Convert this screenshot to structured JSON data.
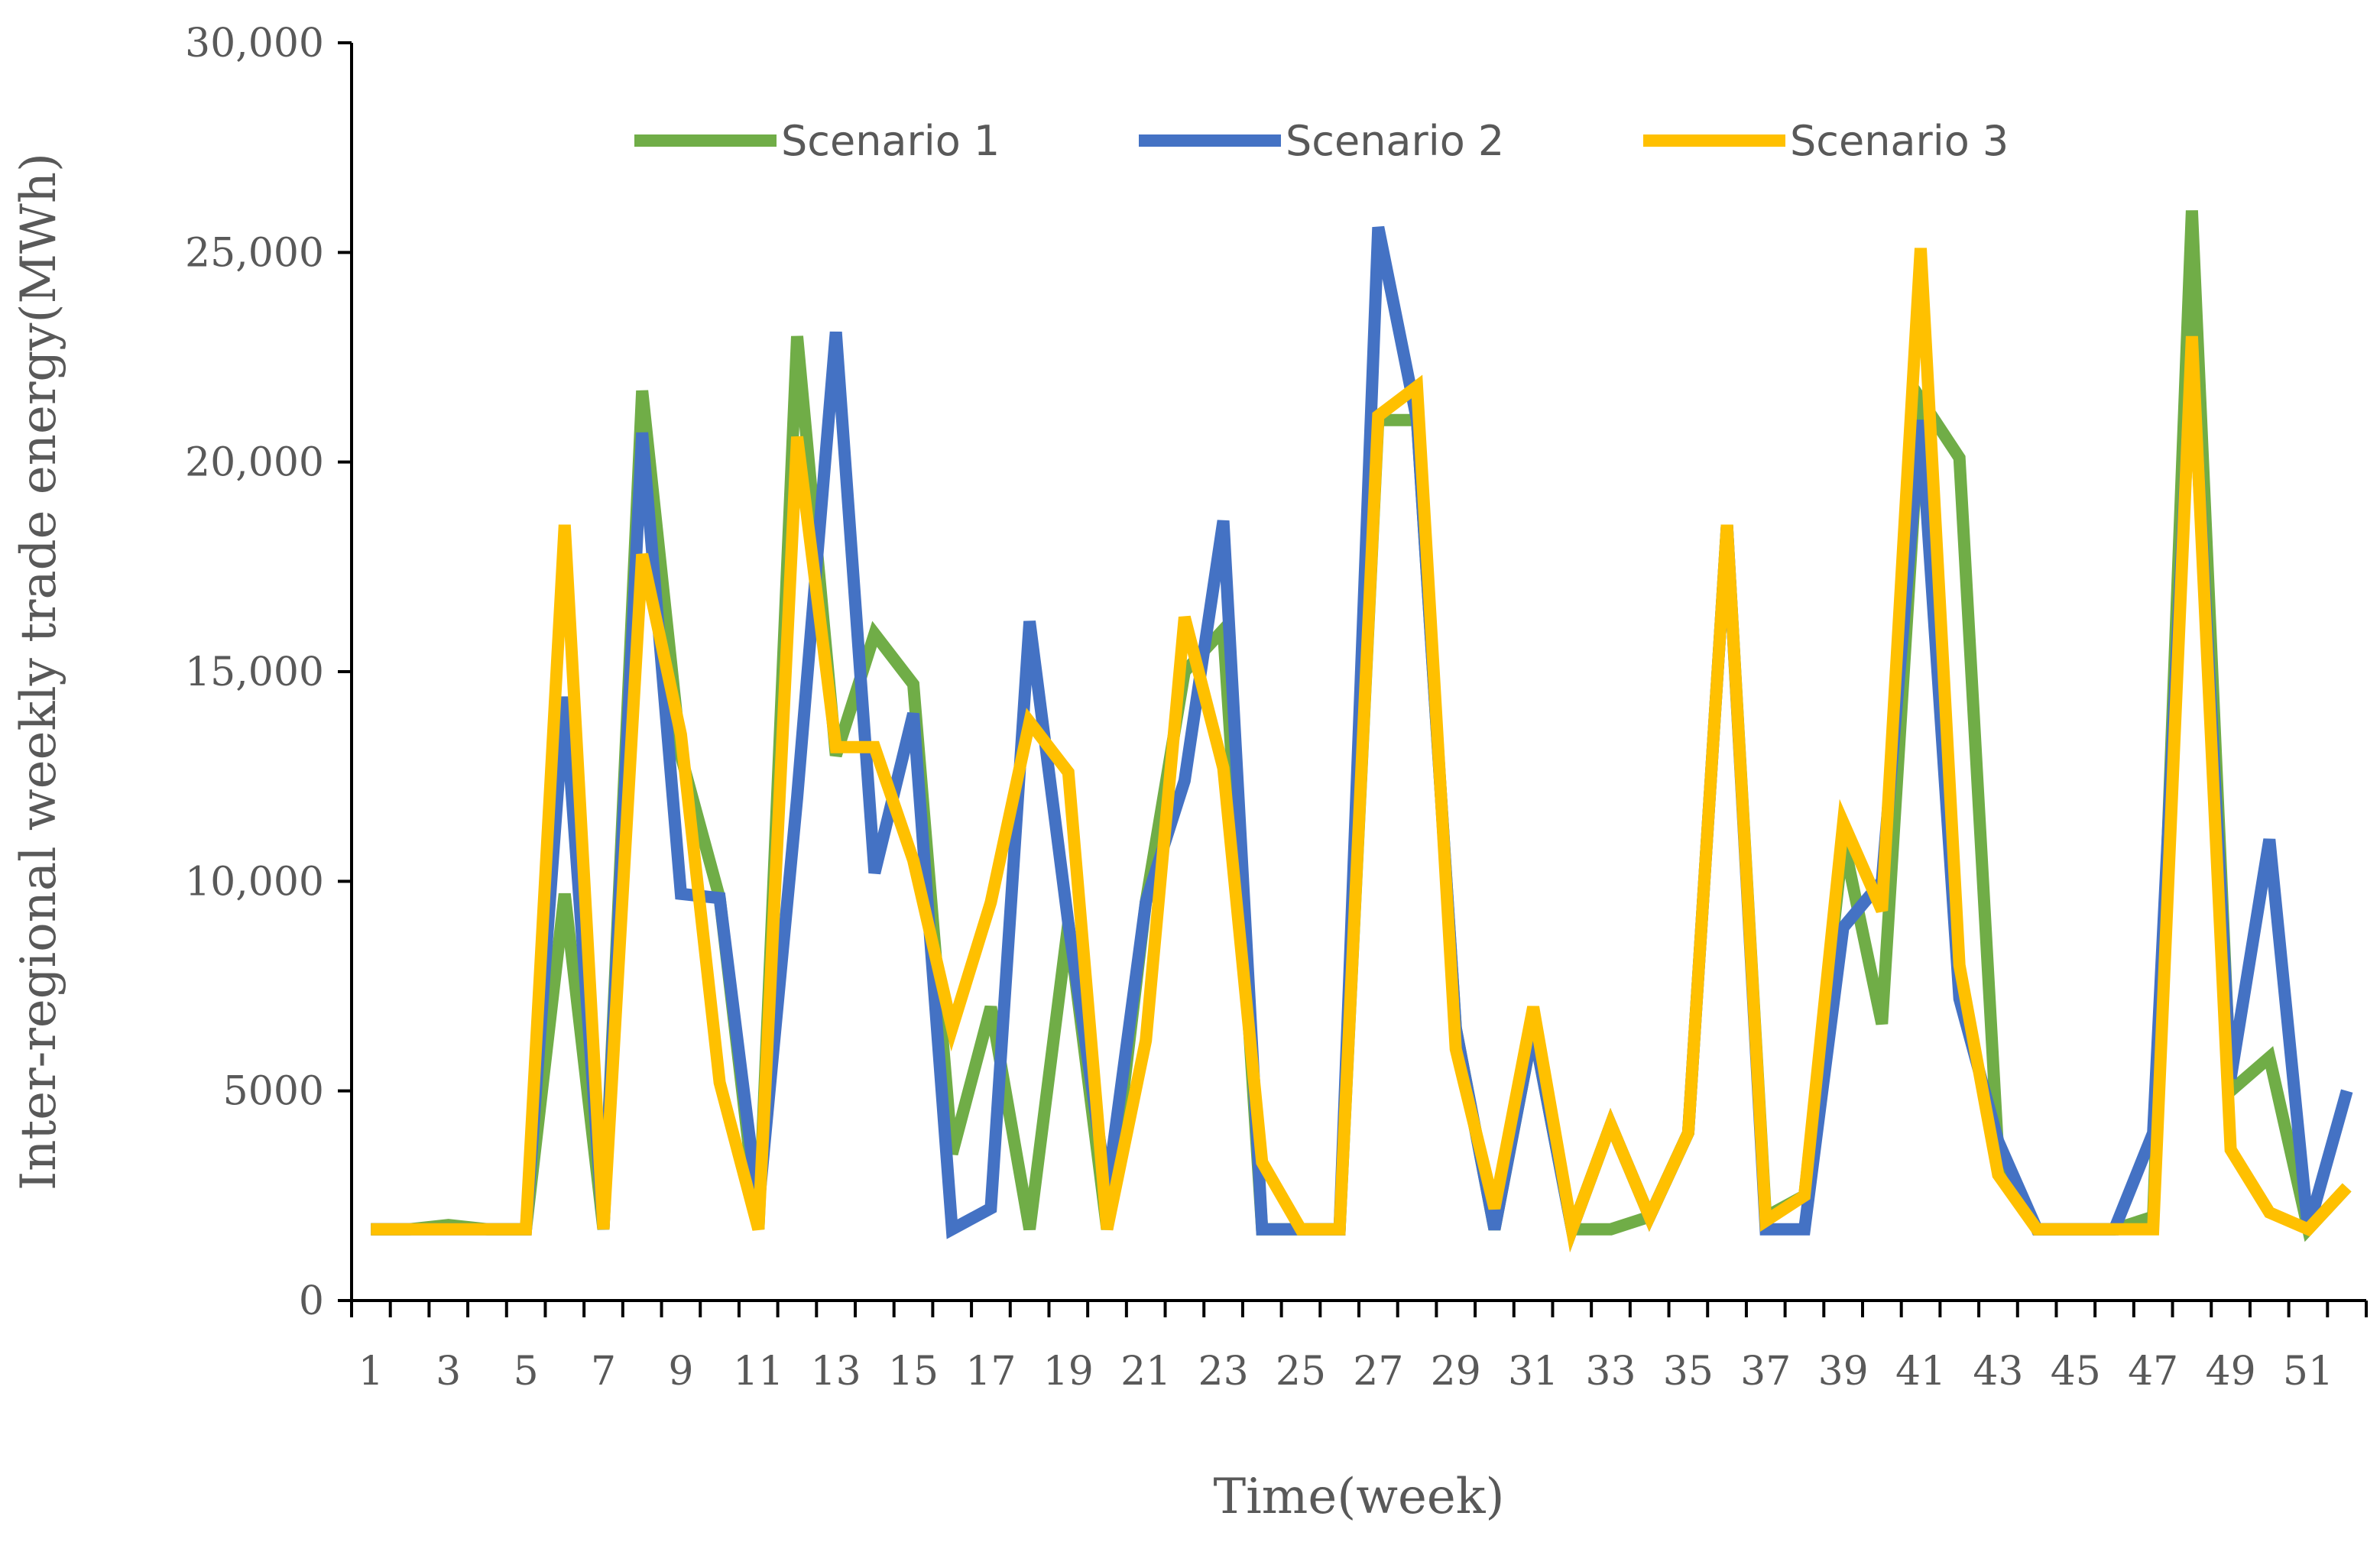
{
  "chart_data": {
    "type": "line",
    "title": "",
    "xlabel": "Time(week)",
    "ylabel": "Inter-regional weekly trade energy(MWh)",
    "x": [
      1,
      2,
      3,
      4,
      5,
      6,
      7,
      8,
      9,
      10,
      11,
      12,
      13,
      14,
      15,
      16,
      17,
      18,
      19,
      20,
      21,
      22,
      23,
      24,
      25,
      26,
      27,
      28,
      29,
      30,
      31,
      32,
      33,
      34,
      35,
      36,
      37,
      38,
      39,
      40,
      41,
      42,
      43,
      44,
      45,
      46,
      47,
      48,
      49,
      50,
      51,
      52
    ],
    "x_tick_labels": [
      "1",
      "3",
      "5",
      "7",
      "9",
      "11",
      "13",
      "15",
      "17",
      "19",
      "21",
      "23",
      "25",
      "27",
      "29",
      "31",
      "33",
      "35",
      "37",
      "39",
      "41",
      "43",
      "45",
      "47",
      "49",
      "51"
    ],
    "ylim": [
      0,
      30000
    ],
    "y_tick_values": [
      0,
      5000,
      10000,
      15000,
      20000,
      25000,
      30000
    ],
    "y_tick_labels": [
      "0",
      "5000",
      "10,000",
      "15,000",
      "20,000",
      "25,000",
      "30,000"
    ],
    "grid": false,
    "legend_position": "top",
    "series": [
      {
        "name": "Scenario 1",
        "color": "#70AD47",
        "values": [
          1700,
          1700,
          1800,
          1700,
          1700,
          9700,
          1700,
          21700,
          13000,
          9600,
          1700,
          23000,
          13000,
          15900,
          14700,
          3500,
          7000,
          1700,
          9000,
          1700,
          9500,
          15000,
          16000,
          1700,
          1700,
          1700,
          21000,
          21000,
          6500,
          1700,
          6500,
          1700,
          1700,
          2000,
          4000,
          18500,
          2000,
          2500,
          11000,
          6600,
          21500,
          20100,
          3500,
          1700,
          1700,
          1700,
          2000,
          26000,
          5000,
          5800,
          1700,
          2700
        ]
      },
      {
        "name": "Scenario 2",
        "color": "#4472C4",
        "values": [
          1700,
          1700,
          1700,
          1700,
          1700,
          14400,
          1700,
          20700,
          9700,
          9600,
          2200,
          12000,
          23100,
          10200,
          14000,
          1700,
          2200,
          16200,
          9000,
          2600,
          9500,
          12400,
          18600,
          1700,
          1700,
          1700,
          25600,
          21000,
          6500,
          1700,
          6500,
          1700,
          4200,
          2000,
          4000,
          18500,
          1700,
          1700,
          8900,
          10000,
          21000,
          7200,
          3800,
          1700,
          1700,
          1700,
          4000,
          22700,
          5300,
          11000,
          1700,
          5000
        ]
      },
      {
        "name": "Scenario 3",
        "color": "#FFC000",
        "values": [
          1700,
          1700,
          1700,
          1700,
          1700,
          18500,
          1700,
          17800,
          13500,
          5200,
          1700,
          20600,
          13200,
          13200,
          10500,
          6500,
          9500,
          13800,
          12600,
          1700,
          6200,
          16300,
          12700,
          3300,
          1700,
          1700,
          21100,
          21800,
          6000,
          2200,
          7000,
          1700,
          4200,
          2000,
          4000,
          18500,
          1900,
          2500,
          11400,
          9300,
          25100,
          8000,
          3000,
          1700,
          1700,
          1700,
          1700,
          23000,
          3600,
          2100,
          1700,
          2700
        ]
      }
    ]
  }
}
